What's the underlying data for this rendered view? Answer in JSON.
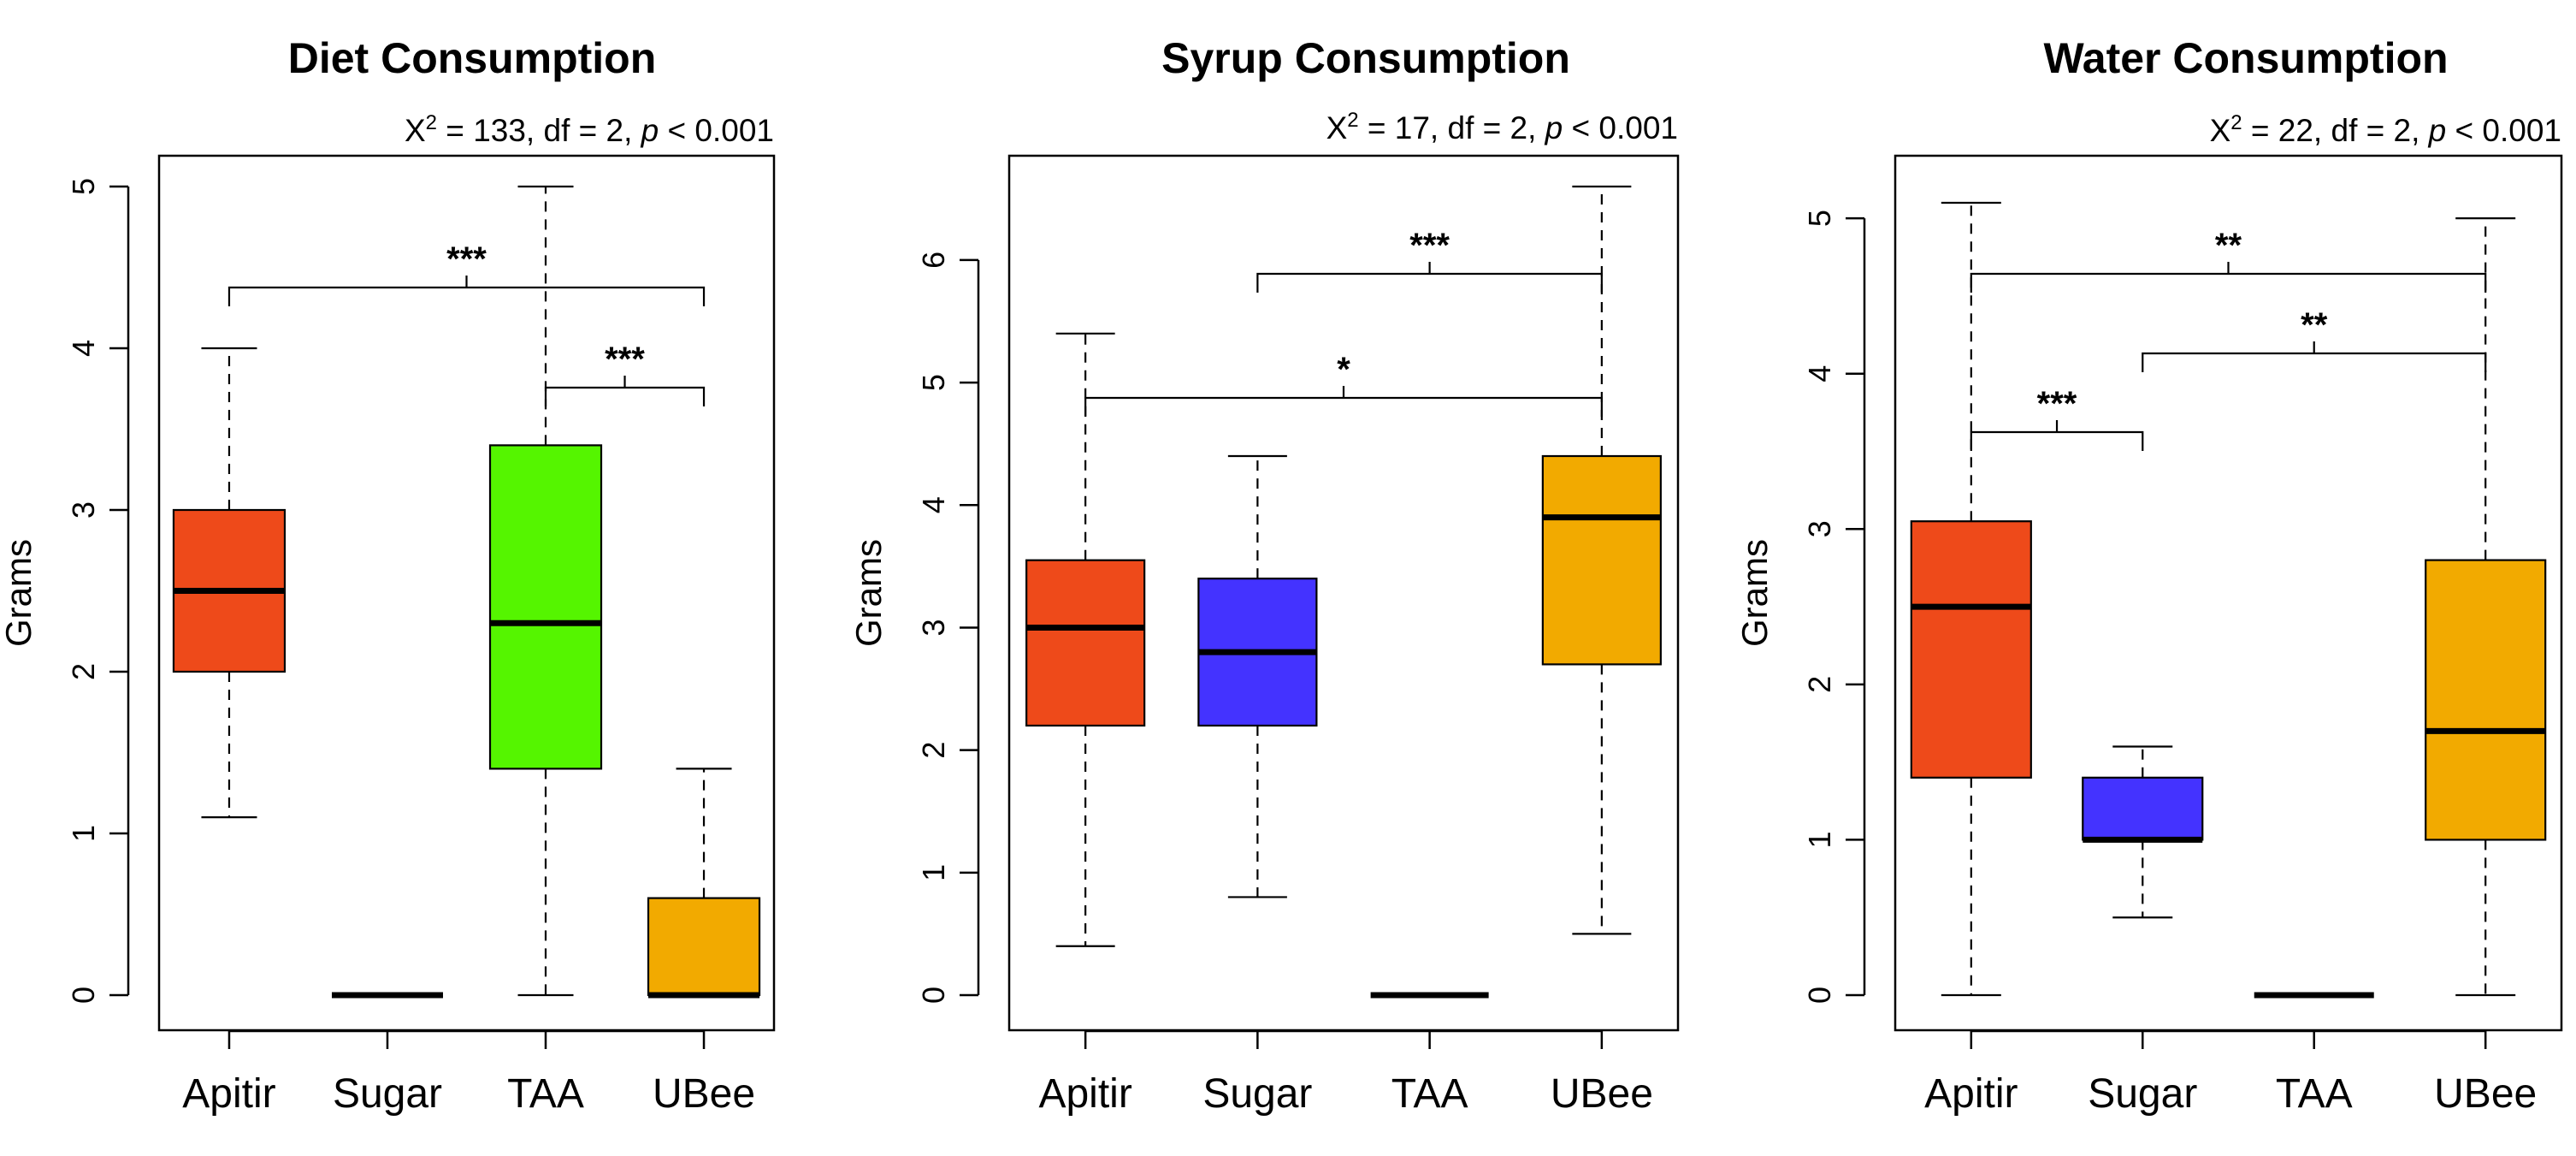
{
  "chart_data": [
    {
      "type": "box",
      "title": "Diet Consumption",
      "stat": {
        "chi": "X",
        "sup": "2",
        "rest": " = 133, df = 2, ",
        "p": "p",
        "tail": " < 0.001"
      },
      "ylabel": "Grams",
      "ylim": [
        0,
        5
      ],
      "yticks": [
        "0",
        "1",
        "2",
        "3",
        "4",
        "5"
      ],
      "categories": [
        "Apitir",
        "Sugar",
        "TAA",
        "UBee"
      ],
      "colors": [
        "#ee4a1a",
        "#4433ff",
        "#55f500",
        "#f2aa00"
      ],
      "boxes": [
        {
          "min": 1.1,
          "q1": 2.0,
          "median": 2.5,
          "q3": 3.0,
          "max": 4.0
        },
        {
          "min": 0,
          "q1": 0,
          "median": 0,
          "q3": 0,
          "max": 0
        },
        {
          "min": 0,
          "q1": 1.4,
          "median": 2.3,
          "q3": 3.4,
          "max": 5.0
        },
        {
          "min": 0,
          "q1": 0,
          "median": 0,
          "q3": 0.6,
          "max": 1.4
        }
      ],
      "brackets": [
        {
          "from": "Apitir",
          "to": "UBee",
          "label": "***"
        },
        {
          "from": "TAA",
          "to": "UBee",
          "label": "***"
        }
      ]
    },
    {
      "type": "box",
      "title": "Syrup Consumption",
      "stat": {
        "chi": "X",
        "sup": "2",
        "rest": " = 17, df = 2, ",
        "p": "p",
        "tail": " < 0.001"
      },
      "ylabel": "Grams",
      "ylim": [
        0,
        6.6
      ],
      "yticks": [
        "0",
        "1",
        "2",
        "3",
        "4",
        "5",
        "6"
      ],
      "categories": [
        "Apitir",
        "Sugar",
        "TAA",
        "UBee"
      ],
      "colors": [
        "#ee4a1a",
        "#4433ff",
        "#55f500",
        "#f2aa00"
      ],
      "boxes": [
        {
          "min": 0.4,
          "q1": 2.2,
          "median": 3.0,
          "q3": 3.55,
          "max": 5.4
        },
        {
          "min": 0.8,
          "q1": 2.2,
          "median": 2.8,
          "q3": 3.4,
          "max": 4.4
        },
        {
          "min": 0,
          "q1": 0,
          "median": 0,
          "q3": 0,
          "max": 0
        },
        {
          "min": 0.5,
          "q1": 2.7,
          "median": 3.9,
          "q3": 4.4,
          "max": 6.6
        }
      ],
      "brackets": [
        {
          "from": "Sugar",
          "to": "UBee",
          "label": "***"
        },
        {
          "from": "Apitir",
          "to": "UBee",
          "label": "*"
        }
      ]
    },
    {
      "type": "box",
      "title": "Water Consumption",
      "stat": {
        "chi": "X",
        "sup": "2",
        "rest": " = 22, df = 2, ",
        "p": "p",
        "tail": " < 0.001"
      },
      "ylabel": "Grams",
      "ylim": [
        0,
        5.1
      ],
      "yticks": [
        "0",
        "1",
        "2",
        "3",
        "4",
        "5"
      ],
      "categories": [
        "Apitir",
        "Sugar",
        "TAA",
        "UBee"
      ],
      "colors": [
        "#ee4a1a",
        "#4433ff",
        "#55f500",
        "#f2aa00"
      ],
      "boxes": [
        {
          "min": 0,
          "q1": 1.4,
          "median": 2.5,
          "q3": 3.05,
          "max": 5.1
        },
        {
          "min": 0.5,
          "q1": 1.0,
          "median": 1.0,
          "q3": 1.4,
          "max": 1.6
        },
        {
          "min": 0,
          "q1": 0,
          "median": 0,
          "q3": 0,
          "max": 0
        },
        {
          "min": 0,
          "q1": 1.0,
          "median": 1.7,
          "q3": 2.8,
          "max": 5.0
        }
      ],
      "brackets": [
        {
          "from": "Sugar",
          "to": "UBee",
          "label": "**"
        },
        {
          "from": "Apitir",
          "to": "UBee",
          "label": "**"
        },
        {
          "from": "Apitir",
          "to": "Sugar",
          "label": "***"
        }
      ]
    }
  ]
}
